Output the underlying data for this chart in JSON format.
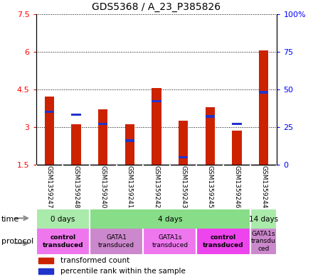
{
  "title": "GDS5368 / A_23_P385826",
  "samples": [
    "GSM1359247",
    "GSM1359248",
    "GSM1359240",
    "GSM1359241",
    "GSM1359242",
    "GSM1359243",
    "GSM1359245",
    "GSM1359246",
    "GSM1359244"
  ],
  "transformed_counts": [
    4.2,
    3.1,
    3.7,
    3.1,
    4.55,
    3.25,
    3.8,
    2.85,
    6.05
  ],
  "percentile_ranks": [
    35,
    33,
    27,
    16,
    42,
    5,
    32,
    27,
    48
  ],
  "ylim_left": [
    1.5,
    7.5
  ],
  "ylim_right": [
    0,
    100
  ],
  "yticks_left": [
    1.5,
    3.0,
    4.5,
    6.0,
    7.5
  ],
  "yticks_right": [
    0,
    25,
    50,
    75,
    100
  ],
  "ytick_labels_left": [
    "1.5",
    "3",
    "4.5",
    "6",
    "7.5"
  ],
  "ytick_labels_right": [
    "0",
    "25",
    "50",
    "75",
    "100%"
  ],
  "bar_color": "#cc2200",
  "blue_color": "#2233cc",
  "time_groups": [
    {
      "label": "0 days",
      "start": 0,
      "end": 2,
      "color": "#aaeaaa"
    },
    {
      "label": "4 days",
      "start": 2,
      "end": 8,
      "color": "#88dd88"
    },
    {
      "label": "14 days",
      "start": 8,
      "end": 9,
      "color": "#aaeaaa"
    }
  ],
  "protocol_groups": [
    {
      "label": "control\ntransduced",
      "start": 0,
      "end": 2,
      "color": "#ee77ee",
      "bold": true
    },
    {
      "label": "GATA1\ntransduced",
      "start": 2,
      "end": 4,
      "color": "#dd88ee",
      "bold": false
    },
    {
      "label": "GATA1s\ntransduced",
      "start": 4,
      "end": 6,
      "color": "#ee88ee",
      "bold": false
    },
    {
      "label": "control\ntransduced",
      "start": 6,
      "end": 8,
      "color": "#ee44ee",
      "bold": true
    },
    {
      "label": "GATA1s\ntransdu\nced",
      "start": 8,
      "end": 9,
      "color": "#dd88ee",
      "bold": false
    }
  ],
  "proto_colors": [
    "#ee77ee",
    "#cc88cc",
    "#ee77ee",
    "#ee44ee",
    "#cc88cc"
  ],
  "sample_area_color": "#c8c8c8",
  "baseline": 1.5,
  "bar_width": 0.35
}
